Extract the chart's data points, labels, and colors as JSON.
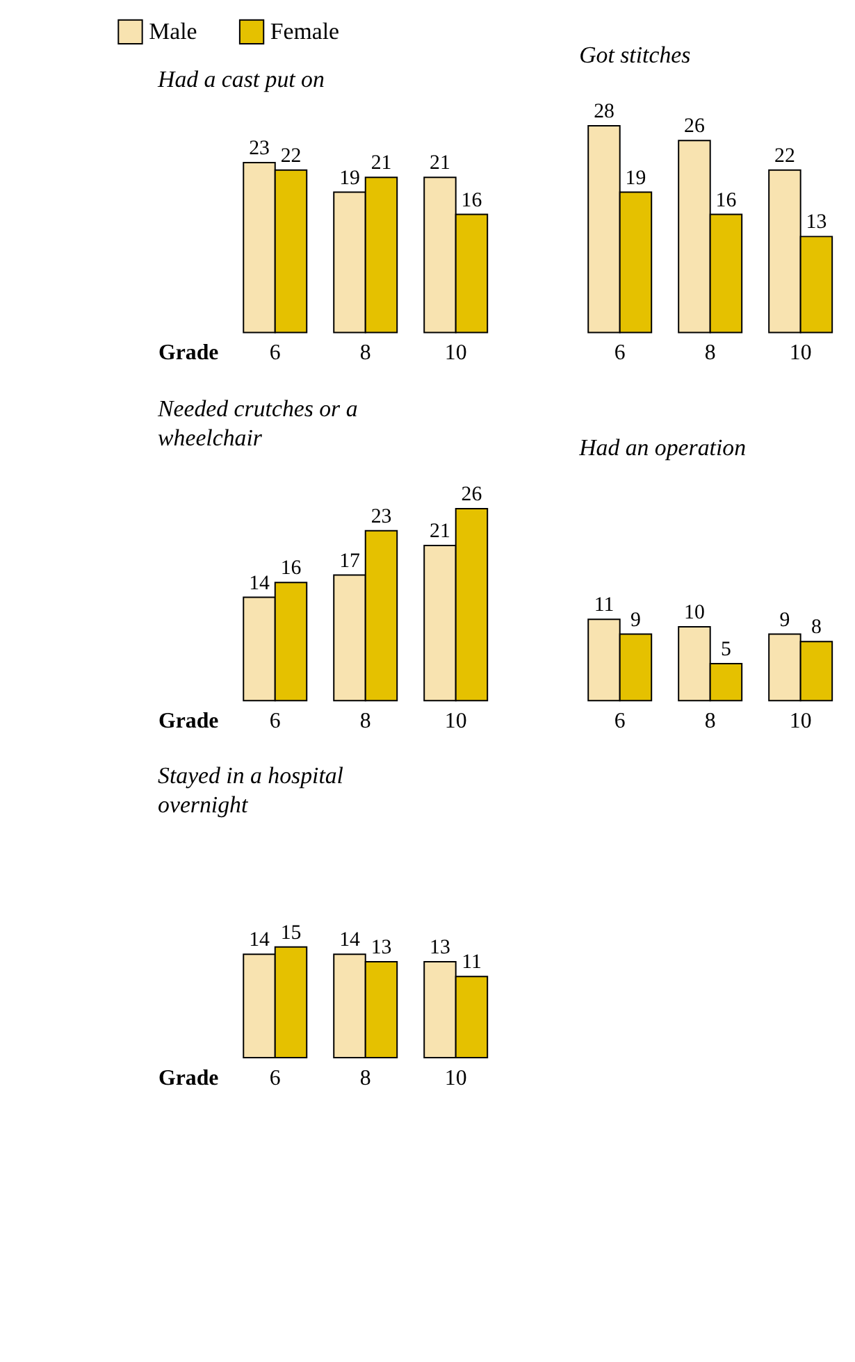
{
  "chart_data": [
    {
      "type": "bar",
      "title": "Had a cast put on",
      "xlabel": "Grade",
      "categories": [
        "6",
        "8",
        "10"
      ],
      "legend": "top left",
      "data_labels": true,
      "tick_labels": "x",
      "series": [
        {
          "name": "Male",
          "color": "#f8e3b0",
          "values": [
            23,
            19,
            21
          ]
        },
        {
          "name": "Female",
          "color": "#e5c100",
          "values": [
            22,
            21,
            16
          ]
        }
      ]
    },
    {
      "type": "bar",
      "title": "Got stitches",
      "categories": [
        "6",
        "8",
        "10"
      ],
      "data_labels": true,
      "tick_labels": "x",
      "series": [
        {
          "name": "Male",
          "color": "#f8e3b0",
          "values": [
            28,
            26,
            22
          ]
        },
        {
          "name": "Female",
          "color": "#e5c100",
          "values": [
            19,
            16,
            13
          ]
        }
      ]
    },
    {
      "type": "bar",
      "title": "Needed crutches or a wheelchair",
      "xlabel": "Grade",
      "categories": [
        "6",
        "8",
        "10"
      ],
      "data_labels": true,
      "tick_labels": "x",
      "series": [
        {
          "name": "Male",
          "color": "#f8e3b0",
          "values": [
            14,
            17,
            21
          ]
        },
        {
          "name": "Female",
          "color": "#e5c100",
          "values": [
            16,
            23,
            26
          ]
        }
      ]
    },
    {
      "type": "bar",
      "title": "Had an operation",
      "categories": [
        "6",
        "8",
        "10"
      ],
      "data_labels": true,
      "tick_labels": "x",
      "series": [
        {
          "name": "Male",
          "color": "#f8e3b0",
          "values": [
            11,
            10,
            9
          ]
        },
        {
          "name": "Female",
          "color": "#e5c100",
          "values": [
            9,
            5,
            8
          ]
        }
      ]
    },
    {
      "type": "bar",
      "title": "Stayed in a hospital overnight",
      "xlabel": "Grade",
      "categories": [
        "6",
        "8",
        "10"
      ],
      "data_labels": true,
      "tick_labels": "x",
      "series": [
        {
          "name": "Male",
          "color": "#f8e3b0",
          "values": [
            14,
            14,
            13
          ]
        },
        {
          "name": "Female",
          "color": "#e5c100",
          "values": [
            15,
            13,
            11
          ]
        }
      ]
    }
  ]
}
